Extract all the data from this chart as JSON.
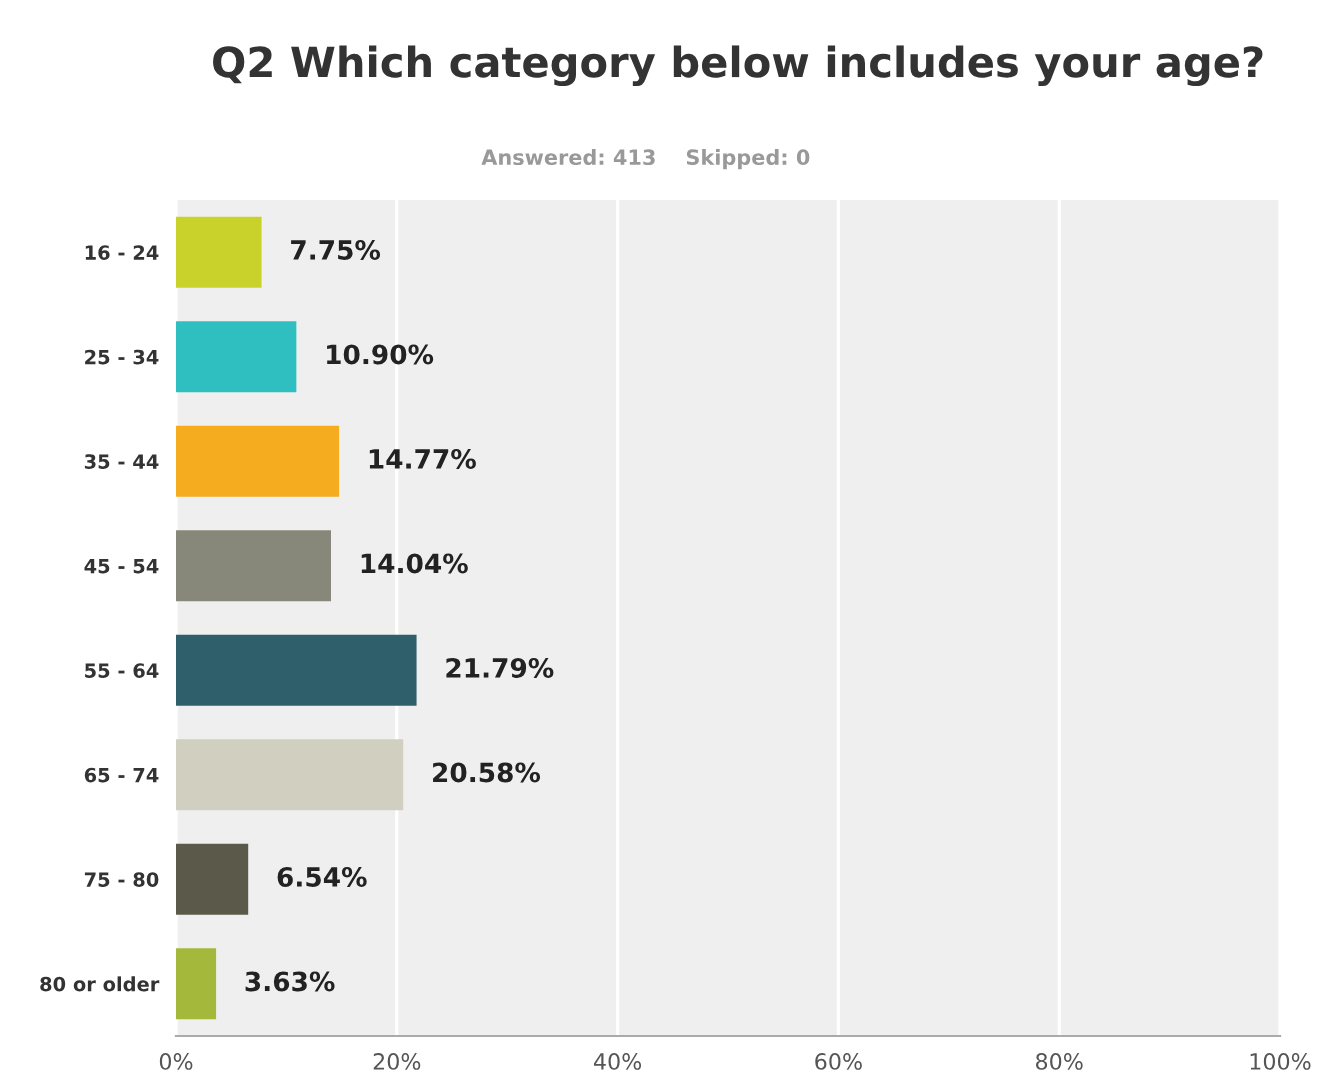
{
  "chart_data": {
    "type": "bar",
    "orientation": "horizontal",
    "title": "Q2 Which category below includes your age?",
    "subtitle": "Answered: 413    Skipped: 0",
    "categories": [
      "16 - 24",
      "25 - 34",
      "35 - 44",
      "45 - 54",
      "55 - 64",
      "65 - 74",
      "75 - 80",
      "80 or older"
    ],
    "values": [
      7.75,
      10.9,
      14.77,
      14.04,
      21.79,
      20.58,
      6.54,
      3.63
    ],
    "value_labels": [
      "7.75%",
      "10.90%",
      "14.77%",
      "14.04%",
      "21.79%",
      "20.58%",
      "6.54%",
      "3.63%"
    ],
    "colors": [
      "#c9d22b",
      "#2fbfc0",
      "#f5ad1f",
      "#88887a",
      "#2e5f6b",
      "#d0cfc0",
      "#5b5a4a",
      "#a4b83b"
    ],
    "xlim": [
      0,
      100
    ],
    "xticks": [
      {
        "value": 0,
        "label": "0%"
      },
      {
        "value": 20,
        "label": "20%"
      },
      {
        "value": 40,
        "label": "40%"
      },
      {
        "value": 60,
        "label": "60%"
      },
      {
        "value": 80,
        "label": "80%"
      },
      {
        "value": 100,
        "label": "100%"
      }
    ],
    "grid": "x"
  }
}
